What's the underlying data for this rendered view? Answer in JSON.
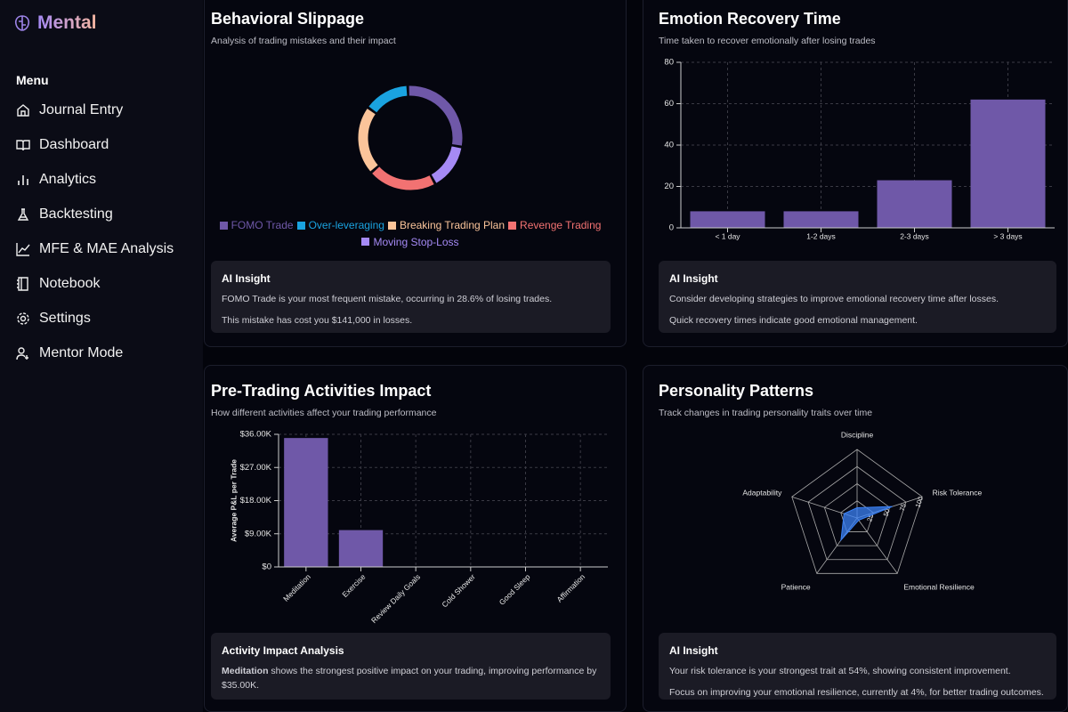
{
  "sidebar": {
    "logo": "Mental",
    "menu_title": "Menu",
    "items": [
      "Journal Entry",
      "Dashboard",
      "Analytics",
      "Backtesting",
      "MFE & MAE Analysis",
      "Notebook",
      "Settings",
      "Mentor Mode"
    ]
  },
  "chart_data": [
    {
      "type": "donut",
      "title": "Behavioral Slippage",
      "subtitle": "Analysis of trading mistakes and their impact",
      "categories": [
        "FOMO Trade",
        "Over-leveraging",
        "Breaking Trading Plan",
        "Revenge Trading",
        "Moving Stop-Loss"
      ],
      "values": [
        4,
        2,
        3,
        3,
        2
      ],
      "colors": [
        "#6f58a8",
        "#1aa3e0",
        "#fbc49a",
        "#f27272",
        "#a58af5"
      ]
    },
    {
      "type": "bar",
      "title": "Emotion Recovery Time",
      "subtitle": "Time taken to recover emotionally after losing trades",
      "categories": [
        "< 1 day",
        "1-2 days",
        "2-3 days",
        "> 3 days"
      ],
      "values": [
        8,
        8,
        23,
        62
      ],
      "color": "#6f58a8",
      "ylim": [
        0,
        80
      ],
      "yticks": [
        0,
        20,
        40,
        60,
        80
      ],
      "grid": true
    },
    {
      "type": "bar",
      "title": "Pre-Trading Activities Impact",
      "subtitle": "How different activities affect your trading performance",
      "y_label": "Average P&L per Trade",
      "categories": [
        "Meditation",
        "Exercise",
        "Review Daily Goals",
        "Cold Shower",
        "Good Sleep",
        "Affirmation"
      ],
      "values": [
        35000,
        10000,
        0,
        0,
        0,
        0
      ],
      "color": "#6f58a8",
      "ylim": [
        0,
        36000
      ],
      "yticks": [
        {
          "value": 0,
          "label": "$0"
        },
        {
          "value": 9000,
          "label": "$9.00K"
        },
        {
          "value": 18000,
          "label": "$18.00K"
        },
        {
          "value": 27000,
          "label": "$27.00K"
        },
        {
          "value": 36000,
          "label": "$36.00K"
        }
      ],
      "grid": true
    },
    {
      "type": "radar",
      "title": "Personality Patterns",
      "subtitle": "Track changes in trading personality traits over time",
      "categories": [
        "Discipline",
        "Risk Tolerance",
        "Emotional Resilience",
        "Patience",
        "Adaptability"
      ],
      "values": [
        15,
        54,
        4,
        40,
        20
      ],
      "color": "#3b82f6",
      "rlim": [
        0,
        100
      ],
      "rticks": [
        25,
        50,
        75,
        100
      ]
    }
  ],
  "insights": [
    {
      "title": "AI Insight",
      "lines": [
        "FOMO Trade is your most frequent mistake, occurring in 28.6% of losing trades.",
        "This mistake has cost you $141,000 in losses."
      ]
    },
    {
      "title": "AI Insight",
      "lines": [
        "Consider developing strategies to improve emotional recovery time after losses.",
        "Quick recovery times indicate good emotional management."
      ]
    },
    {
      "title": "Activity Impact Analysis",
      "lines": [
        {
          "strong": "Meditation",
          "text": "shows the strongest positive impact on your trading, improving performance by $35.00K."
        }
      ]
    },
    {
      "title": "AI Insight",
      "lines": [
        "Your risk tolerance is your strongest trait at 54%, showing consistent improvement.",
        "Focus on improving your emotional resilience, currently at 4%, for better trading outcomes."
      ]
    }
  ]
}
